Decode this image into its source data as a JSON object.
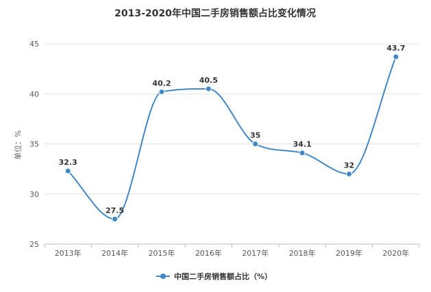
{
  "chart_data": {
    "type": "line",
    "title": "2013-2020年中国二手房销售额占比变化情况",
    "ylabel": "单位：%",
    "xlabel": "",
    "categories": [
      "2013年",
      "2014年",
      "2015年",
      "2016年",
      "2017年",
      "2018年",
      "2019年",
      "2020年"
    ],
    "series": [
      {
        "name": "中国二手房销售额占比（%）",
        "values": [
          32.3,
          27.5,
          40.2,
          40.5,
          35,
          34.1,
          32,
          43.7
        ],
        "labels": [
          "32.3",
          "27.5",
          "40.2",
          "40.5",
          "35",
          "34.1",
          "32",
          "43.7"
        ],
        "color": "#3f87c6"
      }
    ],
    "ylim": [
      25,
      45
    ],
    "yticks": [
      "25",
      "30",
      "35",
      "40",
      "45"
    ],
    "grid": true,
    "smooth": true,
    "legend_position": "bottom"
  }
}
